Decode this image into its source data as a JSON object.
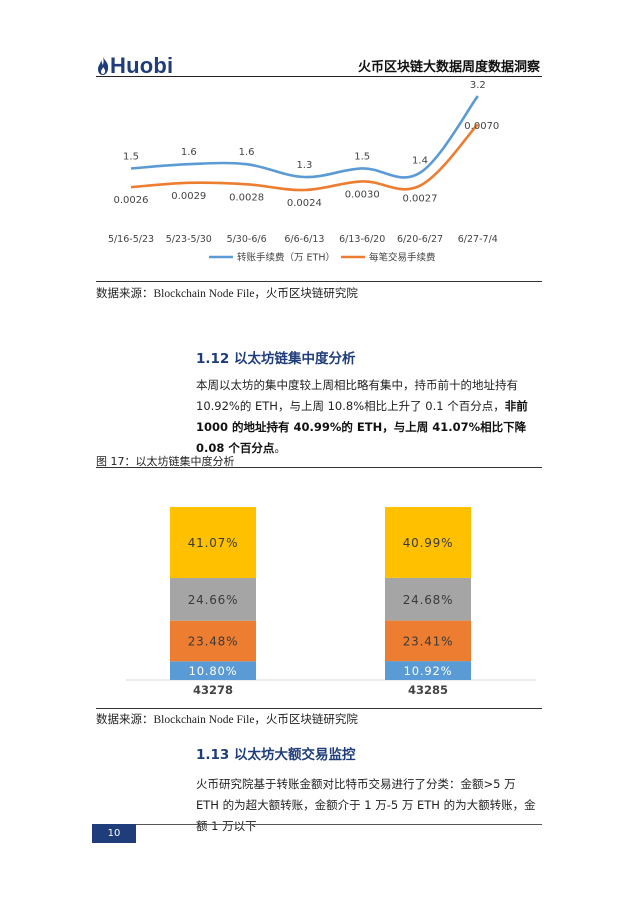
{
  "header": {
    "logo_text": "Huobi",
    "logo_icon": "flame-icon",
    "title": "火币区块链大数据周度数据洞察"
  },
  "chart_data": [
    {
      "type": "line",
      "categories": [
        "5/16-5/23",
        "5/23-5/30",
        "5/30-6/6",
        "6/6-6/13",
        "6/13-6/20",
        "6/20-6/27",
        "6/27-7/4"
      ],
      "series": [
        {
          "name": "转账手续费（万 ETH）",
          "color": "#5b9bd5",
          "values": [
            1.5,
            1.6,
            1.6,
            1.3,
            1.5,
            1.4,
            3.2
          ],
          "labels": [
            "1.5",
            "1.6",
            "1.6",
            "1.3",
            "1.5",
            "1.4",
            "3.2"
          ]
        },
        {
          "name": "每笔交易手续费",
          "color": "#ed7d31",
          "values": [
            0.0026,
            0.0029,
            0.0028,
            0.0024,
            0.003,
            0.0027,
            0.007
          ],
          "labels": [
            "0.0026",
            "0.0029",
            "0.0028",
            "0.0024",
            "0.0030",
            "0.0027",
            "0.0070"
          ]
        }
      ],
      "legend_position": "bottom",
      "grid": false
    },
    {
      "type": "bar",
      "stacked": true,
      "title": "图 17：以太坊链集中度分析",
      "categories": [
        "43278",
        "43285"
      ],
      "series": [
        {
          "color": "#5b9bd5",
          "values": [
            10.8,
            10.92
          ],
          "labels": [
            "10.80%",
            "10.92%"
          ]
        },
        {
          "color": "#ed7d31",
          "values": [
            23.48,
            23.41
          ],
          "labels": [
            "23.48%",
            "23.41%"
          ]
        },
        {
          "color": "#a5a5a5",
          "values": [
            24.66,
            24.68
          ],
          "labels": [
            "24.66%",
            "24.68%"
          ]
        },
        {
          "color": "#ffc000",
          "values": [
            41.07,
            40.99
          ],
          "labels": [
            "41.07%",
            "40.99%"
          ]
        }
      ],
      "ylim": [
        0,
        100
      ]
    }
  ],
  "source_note_1": "数据来源：Blockchain Node File，火币区块链研究院",
  "section_112": {
    "heading": "1.12 以太坊链集中度分析",
    "text_normal_1": "本周以太坊的集中度较上周相比略有集中，持币前十的地址持有 10.92%的 ETH，与上周 10.8%相比上升了 0.1 个百分点，",
    "text_bold": "非前 1000 的地址持有 40.99%的 ETH，与上周 41.07%相比下降 0.08 个百分点",
    "text_normal_2": "。"
  },
  "figure_17_caption": "图 17：以太坊链集中度分析",
  "source_note_2": "数据来源：Blockchain Node File，火币区块链研究院",
  "section_113": {
    "heading": "1.13 以太坊大额交易监控",
    "text": "火币研究院基于转账金额对比特币交易进行了分类：金额>5 万 ETH 的为超大额转账，金额介于 1 万-5 万 ETH 的为大额转账，金额 1 万以下"
  },
  "page_number": "10"
}
